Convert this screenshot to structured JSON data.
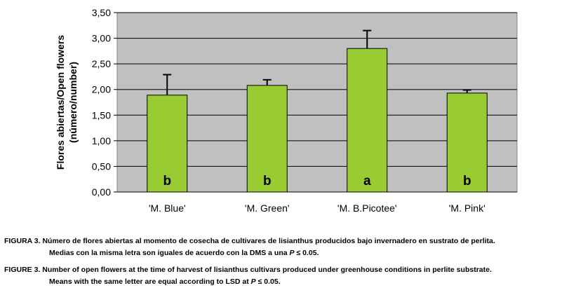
{
  "chart_data": {
    "type": "bar",
    "categories": [
      "'M. Blue'",
      "'M. Green'",
      "'M. B.Picotee'",
      "'M. Pink'"
    ],
    "values": [
      1.89,
      2.08,
      2.8,
      1.93
    ],
    "error": [
      0.4,
      0.11,
      0.35,
      0.06
    ],
    "letters": [
      "b",
      "b",
      "a",
      "b"
    ],
    "ylabel_line1": "Flores abiertas/Open flowers",
    "ylabel_line2": "(número/number)",
    "ylim": [
      0,
      3.5
    ],
    "yticks": [
      "0,00",
      "0,50",
      "1,00",
      "1,50",
      "2,00",
      "2,50",
      "3,00",
      "3,50"
    ],
    "grid": true,
    "bar_color": "#99cc33",
    "plot_bg": "#c0c0c0"
  },
  "captions": {
    "es_label": "FIGURA 3.",
    "es_line1": "Número de flores abiertas al momento de cosecha de cultivares de lisianthus producidos bajo invernadero en sustrato de perlita.",
    "es_line2_pre": "Medias con la misma letra son iguales de acuerdo con la DMS a una",
    "es_line2_p": "P",
    "es_line2_post": "≤ 0.05.",
    "en_label": "FIGURE 3.",
    "en_line1": "Number of open flowers at the time of harvest of lisianthus cultivars produced under greenhouse conditions in perlite substrate.",
    "en_line2_pre": "Means with the same letter are equal according to LSD at",
    "en_line2_p": "P",
    "en_line2_post": "≤ 0.05."
  }
}
